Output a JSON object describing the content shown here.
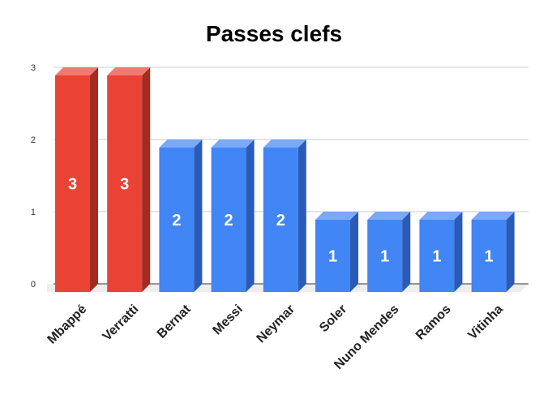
{
  "chart_data": {
    "type": "bar",
    "title": "Passes clefs",
    "xlabel": "",
    "ylabel": "",
    "categories": [
      "Mbappé",
      "Verratti",
      "Bernat",
      "Messi",
      "Neymar",
      "Soler",
      "Nuno Mendes",
      "Ramos",
      "Vitinha"
    ],
    "values": [
      3,
      3,
      2,
      2,
      2,
      1,
      1,
      1,
      1
    ],
    "data_labels": [
      "3",
      "3",
      "2",
      "2",
      "2",
      "1",
      "1",
      "1",
      "1"
    ],
    "ylim": [
      0,
      3
    ],
    "yticks": [
      "0",
      "1",
      "2",
      "3"
    ],
    "grid": true,
    "legend": "none",
    "style": "3d-bar",
    "colors": {
      "highlight": "#EA4335",
      "default": "#4285F4"
    },
    "bar_colors": [
      "highlight",
      "highlight",
      "default",
      "default",
      "default",
      "default",
      "default",
      "default",
      "default"
    ]
  }
}
